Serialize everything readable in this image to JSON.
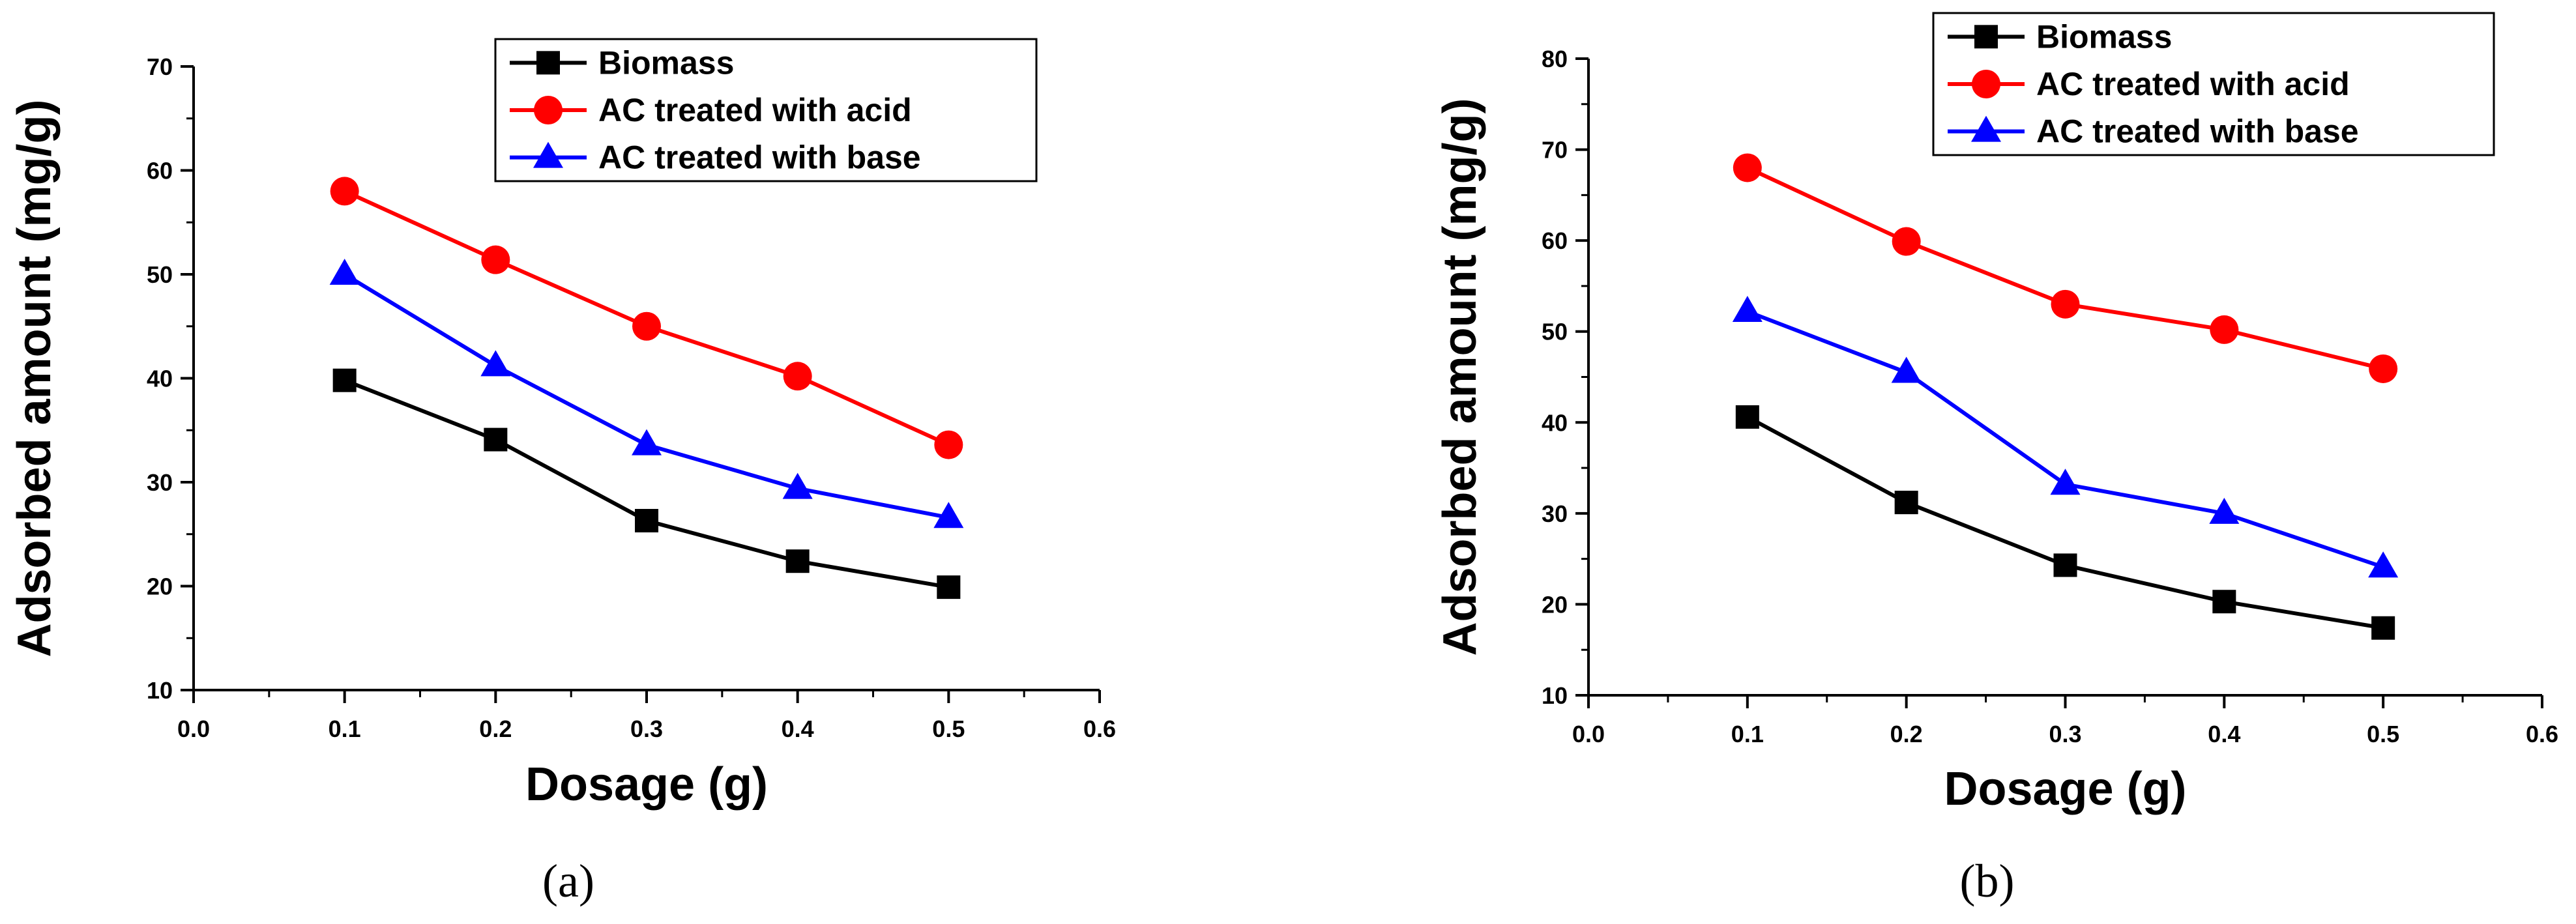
{
  "chart_data": [
    {
      "type": "line",
      "panel_label": "(a)",
      "xlabel": "Dosage (g)",
      "ylabel": "Adsorbed amount (mg/g)",
      "xlim": [
        0.0,
        0.6
      ],
      "ylim": [
        10,
        70
      ],
      "xticks": [
        "0.0",
        "0.1",
        "0.2",
        "0.3",
        "0.4",
        "0.5",
        "0.6"
      ],
      "yticks": [
        "10",
        "20",
        "30",
        "40",
        "50",
        "60",
        "70"
      ],
      "legend_position": "top-right",
      "x": [
        0.1,
        0.2,
        0.3,
        0.4,
        0.5
      ],
      "series": [
        {
          "name": "Biomass",
          "color": "#000000",
          "marker": "square",
          "values": [
            39.8,
            34.1,
            26.3,
            22.4,
            19.9
          ]
        },
        {
          "name": "AC treated with acid",
          "color": "#ff0000",
          "marker": "circle",
          "values": [
            58.0,
            51.4,
            45.0,
            40.2,
            33.6
          ]
        },
        {
          "name": "AC treated with base",
          "color": "#0000ff",
          "marker": "triangle",
          "values": [
            50.0,
            41.2,
            33.6,
            29.4,
            26.6
          ]
        }
      ]
    },
    {
      "type": "line",
      "panel_label": "(b)",
      "xlabel": "Dosage (g)",
      "ylabel": "Adsorbed amount (mg/g)",
      "xlim": [
        0.0,
        0.6
      ],
      "ylim": [
        10,
        80
      ],
      "xticks": [
        "0.0",
        "0.1",
        "0.2",
        "0.3",
        "0.4",
        "0.5",
        "0.6"
      ],
      "yticks": [
        "10",
        "20",
        "30",
        "40",
        "50",
        "60",
        "70",
        "80"
      ],
      "legend_position": "top-right",
      "x": [
        0.1,
        0.2,
        0.3,
        0.4,
        0.5
      ],
      "series": [
        {
          "name": "Biomass",
          "color": "#000000",
          "marker": "square",
          "values": [
            40.6,
            31.2,
            24.3,
            20.3,
            17.4
          ]
        },
        {
          "name": "AC treated with acid",
          "color": "#ff0000",
          "marker": "circle",
          "values": [
            68.0,
            59.9,
            53.0,
            50.2,
            45.9
          ]
        },
        {
          "name": "AC treated with base",
          "color": "#0000ff",
          "marker": "triangle",
          "values": [
            52.2,
            45.5,
            33.2,
            30.0,
            24.1
          ]
        }
      ]
    }
  ]
}
